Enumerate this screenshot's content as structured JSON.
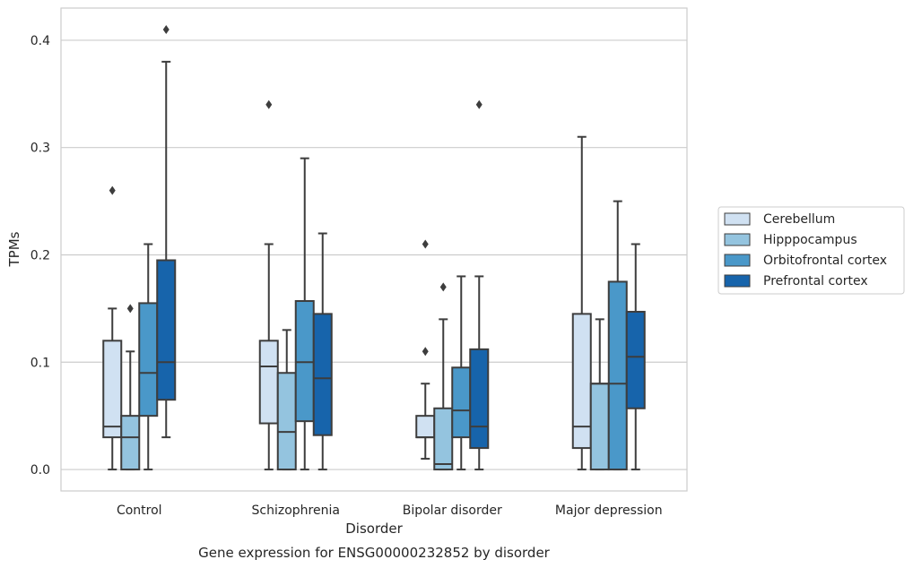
{
  "chart_data": {
    "type": "box",
    "caption": "Gene expression for ENSG00000232852 by disorder",
    "xlabel": "Disorder",
    "ylabel": "TPMs",
    "ylim": [
      -0.02,
      0.43
    ],
    "yticks": [
      0.0,
      0.1,
      0.2,
      0.3,
      0.4
    ],
    "ytick_labels": [
      "0.0",
      "0.1",
      "0.2",
      "0.3",
      "0.4"
    ],
    "grid": "horizontal",
    "legend_position": "right",
    "categories": [
      "Control",
      "Schizophrenia",
      "Bipolar disorder",
      "Major depression"
    ],
    "series": [
      {
        "name": "Cerebellum",
        "color": "#d0e1f2",
        "boxes": [
          {
            "low": 0.0,
            "q1": 0.03,
            "median": 0.04,
            "q3": 0.12,
            "high": 0.15,
            "outliers": [
              0.26
            ]
          },
          {
            "low": 0.0,
            "q1": 0.043,
            "median": 0.096,
            "q3": 0.12,
            "high": 0.21,
            "outliers": [
              0.34
            ]
          },
          {
            "low": 0.01,
            "q1": 0.03,
            "median": 0.03,
            "q3": 0.05,
            "high": 0.08,
            "outliers": [
              0.11,
              0.21
            ]
          },
          {
            "low": 0.0,
            "q1": 0.02,
            "median": 0.04,
            "q3": 0.145,
            "high": 0.31,
            "outliers": []
          }
        ]
      },
      {
        "name": "Hipppocampus",
        "color": "#94c4df",
        "boxes": [
          {
            "low": 0.0,
            "q1": 0.0,
            "median": 0.03,
            "q3": 0.05,
            "high": 0.11,
            "outliers": [
              0.15
            ]
          },
          {
            "low": 0.0,
            "q1": 0.0,
            "median": 0.035,
            "q3": 0.09,
            "high": 0.13,
            "outliers": []
          },
          {
            "low": 0.0,
            "q1": 0.0,
            "median": 0.005,
            "q3": 0.057,
            "high": 0.14,
            "outliers": [
              0.17
            ]
          },
          {
            "low": 0.0,
            "q1": 0.0,
            "median": 0.08,
            "q3": 0.08,
            "high": 0.14,
            "outliers": []
          }
        ]
      },
      {
        "name": "Orbitofrontal cortex",
        "color": "#4a98c9",
        "boxes": [
          {
            "low": 0.0,
            "q1": 0.05,
            "median": 0.09,
            "q3": 0.155,
            "high": 0.21,
            "outliers": []
          },
          {
            "low": 0.0,
            "q1": 0.045,
            "median": 0.1,
            "q3": 0.157,
            "high": 0.29,
            "outliers": []
          },
          {
            "low": 0.0,
            "q1": 0.03,
            "median": 0.055,
            "q3": 0.095,
            "high": 0.18,
            "outliers": []
          },
          {
            "low": 0.0,
            "q1": 0.0,
            "median": 0.08,
            "q3": 0.175,
            "high": 0.25,
            "outliers": []
          }
        ]
      },
      {
        "name": "Prefrontal cortex",
        "color": "#1764ab",
        "boxes": [
          {
            "low": 0.03,
            "q1": 0.065,
            "median": 0.1,
            "q3": 0.195,
            "high": 0.38,
            "outliers": [
              0.41
            ]
          },
          {
            "low": 0.0,
            "q1": 0.032,
            "median": 0.085,
            "q3": 0.145,
            "high": 0.22,
            "outliers": []
          },
          {
            "low": 0.0,
            "q1": 0.02,
            "median": 0.04,
            "q3": 0.112,
            "high": 0.18,
            "outliers": [
              0.34
            ]
          },
          {
            "low": 0.0,
            "q1": 0.057,
            "median": 0.105,
            "q3": 0.147,
            "high": 0.21,
            "outliers": []
          }
        ]
      }
    ]
  }
}
